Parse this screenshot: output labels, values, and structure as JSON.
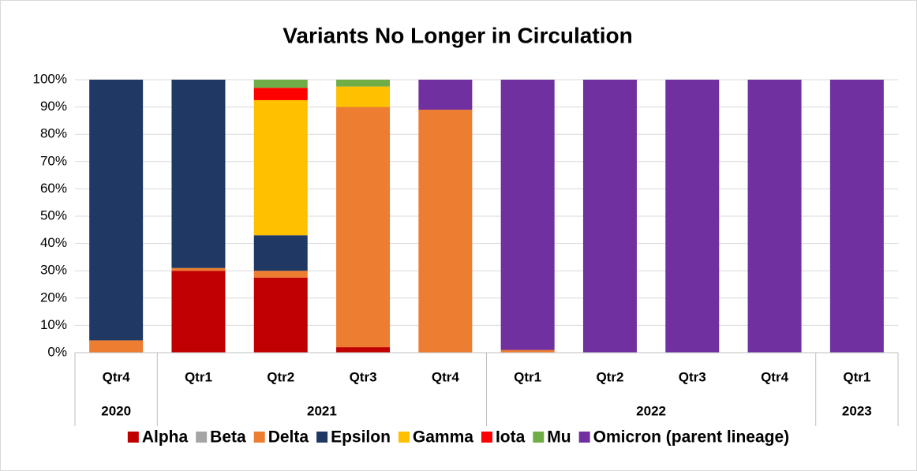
{
  "chart_data": {
    "type": "stacked_bar",
    "title": "Variants No Longer in Circulation",
    "categories": [
      "Qtr4",
      "Qtr1",
      "Qtr2",
      "Qtr3",
      "Qtr4",
      "Qtr1",
      "Qtr2",
      "Qtr3",
      "Qtr4",
      "Qtr1"
    ],
    "category_groups": [
      {
        "label": "2020",
        "count": 1
      },
      {
        "label": "2021",
        "count": 4
      },
      {
        "label": "2022",
        "count": 4
      },
      {
        "label": "2023",
        "count": 1
      }
    ],
    "series": [
      {
        "name": "Alpha",
        "color": "#c00000",
        "values": [
          0,
          30,
          27.5,
          2,
          0,
          0,
          0,
          0,
          0,
          0
        ]
      },
      {
        "name": "Beta",
        "color": "#a5a5a5",
        "values": [
          0,
          0,
          0,
          0,
          0,
          0,
          0,
          0,
          0,
          0
        ]
      },
      {
        "name": "Delta",
        "color": "#ed7d31",
        "values": [
          4.5,
          1,
          2.5,
          88,
          89,
          1,
          0,
          0,
          0,
          0
        ]
      },
      {
        "name": "Epsilon",
        "color": "#203864",
        "values": [
          95.5,
          69,
          13,
          0,
          0,
          0,
          0,
          0,
          0,
          0
        ]
      },
      {
        "name": "Gamma",
        "color": "#ffc000",
        "values": [
          0,
          0,
          49.5,
          7.5,
          0,
          0,
          0,
          0,
          0,
          0
        ]
      },
      {
        "name": "Iota",
        "color": "#ff0000",
        "values": [
          0,
          0,
          4.5,
          0,
          0,
          0,
          0,
          0,
          0,
          0
        ]
      },
      {
        "name": "Mu",
        "color": "#70ad47",
        "values": [
          0,
          0,
          3,
          2.5,
          0,
          0,
          0,
          0,
          0,
          0
        ]
      },
      {
        "name": "Omicron (parent lineage)",
        "color": "#7030a0",
        "values": [
          0,
          0,
          0,
          0,
          11,
          99,
          100,
          100,
          100,
          100
        ]
      }
    ],
    "ylim": [
      0,
      100
    ],
    "yticks": [
      {
        "value": 0,
        "label": "0%"
      },
      {
        "value": 10,
        "label": "10%"
      },
      {
        "value": 20,
        "label": "20%"
      },
      {
        "value": 30,
        "label": "30%"
      },
      {
        "value": 40,
        "label": "40%"
      },
      {
        "value": 50,
        "label": "50%"
      },
      {
        "value": 60,
        "label": "60%"
      },
      {
        "value": 70,
        "label": "70%"
      },
      {
        "value": 80,
        "label": "80%"
      },
      {
        "value": 90,
        "label": "90%"
      },
      {
        "value": 100,
        "label": "100%"
      }
    ],
    "grid": true,
    "legend": "bottom"
  }
}
